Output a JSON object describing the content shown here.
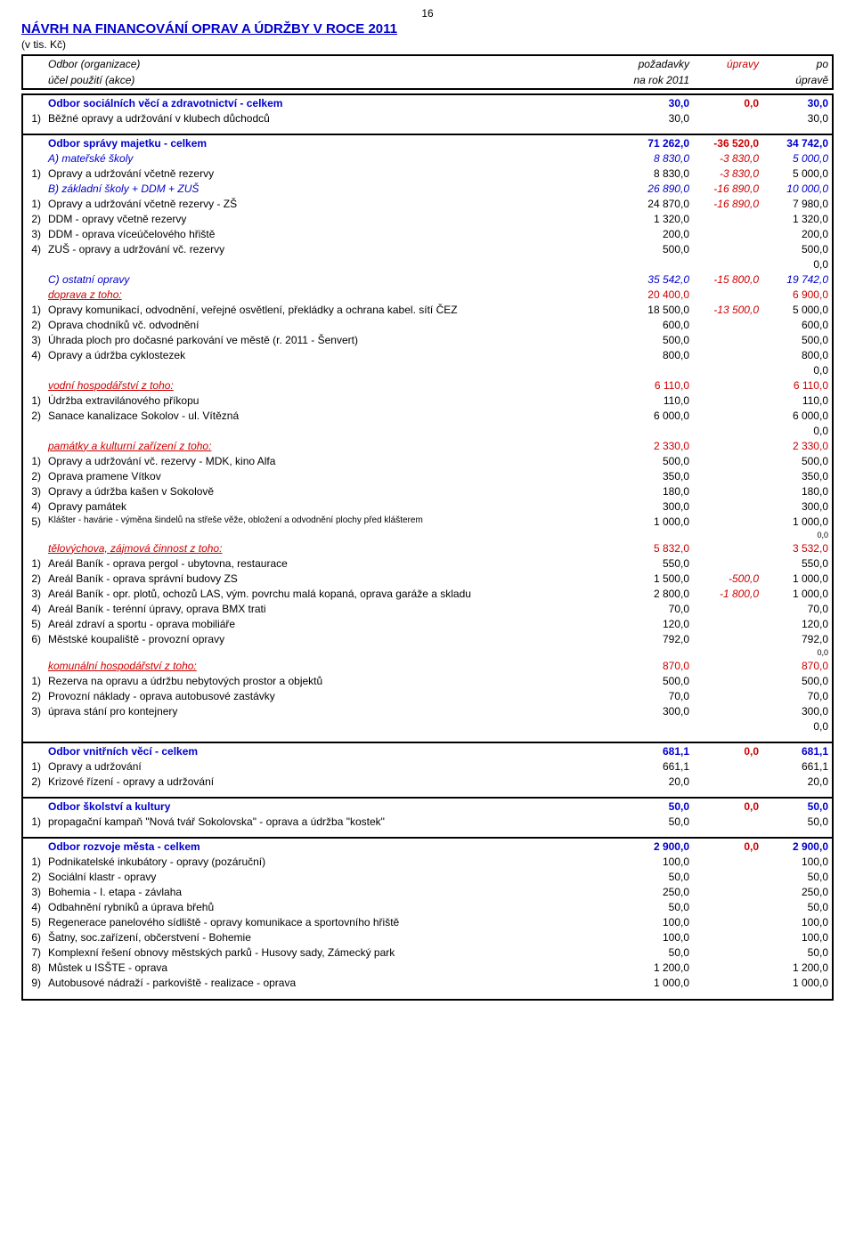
{
  "page_number": "16",
  "title": "NÁVRH NA FINANCOVÁNÍ OPRAV A ÚDRŽBY  V  ROCE  2011",
  "subtitle": "(v tis. Kč)",
  "header": {
    "left1": "Odbor (organizace)",
    "left2": "účel použití (akce)",
    "c1a": "požadavky",
    "c1b": "na rok 2011",
    "c2a": "úpravy",
    "c3a": "po",
    "c3b": "úpravě"
  },
  "sections": [
    {
      "title": "Odbor sociálních věcí a zdravotnictví - celkem",
      "v1": "30,0",
      "v2": "0,0",
      "v3": "30,0",
      "rows": [
        {
          "n": "1)",
          "d": "Běžné opravy a udržování v klubech důchodců",
          "v1": "30,0",
          "v3": "30,0"
        }
      ]
    },
    {
      "title": "Odbor správy majetku - celkem",
      "v1": "71 262,0",
      "v2": "-36 520,0",
      "v3": "34 742,0",
      "groups": [
        {
          "label": "A) mateřské školy",
          "v1": "8 830,0",
          "v2": "-3 830,0",
          "v3": "5 000,0",
          "rows": [
            {
              "n": "1)",
              "d": "Opravy a udržování včetně rezervy",
              "v1": "8 830,0",
              "v2": "-3 830,0",
              "v3": "5 000,0"
            }
          ]
        },
        {
          "label": "B) základní školy + DDM + ZUŠ",
          "v1": "26 890,0",
          "v2": "-16 890,0",
          "v3": "10 000,0",
          "rows": [
            {
              "n": "1)",
              "d": "Opravy a udržování včetně rezervy - ZŠ",
              "v1": "24 870,0",
              "v2": "-16 890,0",
              "v3": "7 980,0"
            },
            {
              "n": "2)",
              "d": "DDM - opravy včetně rezervy",
              "v1": "1 320,0",
              "v3": "1 320,0"
            },
            {
              "n": "3)",
              "d": "DDM - oprava víceúčelového hřiště",
              "v1": "200,0",
              "v3": "200,0"
            },
            {
              "n": "4)",
              "d": "ZUŠ - opravy a udržování vč. rezervy",
              "v1": "500,0",
              "v3": "500,0"
            }
          ],
          "trailing": "0,0"
        },
        {
          "label": "C) ostatní opravy",
          "v1": "35 542,0",
          "v2": "-15 800,0",
          "v3": "19 742,0",
          "subs": [
            {
              "label": "doprava z toho:",
              "v1": "20 400,0",
              "v3": "6 900,0",
              "rows": [
                {
                  "n": "1)",
                  "d": "Opravy komunikací, odvodnění, veřejné osvětlení, překládky a ochrana kabel. sítí ČEZ",
                  "v1": "18 500,0",
                  "v2": "-13 500,0",
                  "v3": "5 000,0"
                },
                {
                  "n": "2)",
                  "d": "Oprava chodníků vč. odvodnění",
                  "v1": "600,0",
                  "v3": "600,0"
                },
                {
                  "n": "3)",
                  "d": "Úhrada ploch pro dočasné parkování ve městě (r. 2011 - Šenvert)",
                  "v1": "500,0",
                  "v3": "500,0"
                },
                {
                  "n": "4)",
                  "d": "Opravy a údržba cyklostezek",
                  "v1": "800,0",
                  "v3": "800,0"
                }
              ],
              "trailing": "0,0"
            },
            {
              "label": "vodní hospodářství z toho:",
              "v1": "6 110,0",
              "v3": "6 110,0",
              "rows": [
                {
                  "n": "1)",
                  "d": "Údržba extravilánového příkopu",
                  "v1": "110,0",
                  "v3": "110,0"
                },
                {
                  "n": "2)",
                  "d": "Sanace kanalizace Sokolov - ul. Vítězná",
                  "v1": "6 000,0",
                  "v3": "6 000,0"
                }
              ],
              "trailing": "0,0"
            },
            {
              "label": "památky a kulturní zařízení z toho:",
              "v1": "2 330,0",
              "v3": "2 330,0",
              "rows": [
                {
                  "n": "1)",
                  "d": "Opravy a udržování vč. rezervy - MDK, kino Alfa",
                  "v1": "500,0",
                  "v3": "500,0"
                },
                {
                  "n": "2)",
                  "d": "Oprava  pramene Vítkov",
                  "v1": "350,0",
                  "v3": "350,0"
                },
                {
                  "n": "3)",
                  "d": "Opravy a údržba  kašen v Sokolově",
                  "v1": "180,0",
                  "v3": "180,0"
                },
                {
                  "n": "4)",
                  "d": "Opravy památek",
                  "v1": "300,0",
                  "v3": "300,0"
                },
                {
                  "n": "5)",
                  "d": "Klášter - havárie - výměna šindelů na střeše věže, obložení a odvodnění plochy před klášterem",
                  "v1": "1 000,0",
                  "v3": "1 000,0",
                  "small": true
                }
              ],
              "trailing": "0,0",
              "trailing_small": true
            },
            {
              "label": "tělovýchova, zájmová činnost z toho:",
              "v1": "5 832,0",
              "v3": "3 532,0",
              "rows": [
                {
                  "n": "1)",
                  "d": "Areál Baník - oprava pergol - ubytovna, restaurace",
                  "v1": "550,0",
                  "v3": "550,0"
                },
                {
                  "n": "2)",
                  "d": "Areál Baník - oprava správní budovy ZS",
                  "v1": "1 500,0",
                  "v2": "-500,0",
                  "v3": "1 000,0"
                },
                {
                  "n": "3)",
                  "d": "Areál Baník - opr. plotů, ochozů LAS, vým. povrchu malá kopaná, oprava garáže a skladu",
                  "v1": "2 800,0",
                  "v2": "-1 800,0",
                  "v3": "1 000,0"
                },
                {
                  "n": "4)",
                  "d": "Areál Baník - terénní úpravy, oprava BMX trati",
                  "v1": "70,0",
                  "v3": "70,0"
                },
                {
                  "n": "5)",
                  "d": "Areál zdraví a sportu - oprava mobiliáře",
                  "v1": "120,0",
                  "v3": "120,0"
                },
                {
                  "n": "6)",
                  "d": "Městské koupaliště - provozní opravy",
                  "v1": "792,0",
                  "v3": "792,0"
                }
              ],
              "trailing": "0,0",
              "trailing_small": true
            },
            {
              "label": "komunální hospodářství z toho:",
              "v1": "870,0",
              "v3": "870,0",
              "rows": [
                {
                  "n": "1)",
                  "d": "Rezerva na opravu a údržbu nebytových prostor a objektů",
                  "v1": "500,0",
                  "v3": "500,0"
                },
                {
                  "n": "2)",
                  "d": "Provozní náklady - oprava autobusové zastávky",
                  "v1": "70,0",
                  "v3": "70,0"
                },
                {
                  "n": "3)",
                  "d": "úprava stání pro kontejnery",
                  "v1": "300,0",
                  "v3": "300,0"
                }
              ],
              "trailing": "0,0"
            }
          ]
        }
      ]
    },
    {
      "title": "Odbor vnitřních věcí - celkem",
      "v1": "681,1",
      "v2": "0,0",
      "v3": "681,1",
      "rows": [
        {
          "n": "1)",
          "d": "Opravy a udržování",
          "v1": "661,1",
          "v3": "661,1"
        },
        {
          "n": "2)",
          "d": "Krizové řízení - opravy a udržování",
          "v1": "20,0",
          "v3": "20,0"
        }
      ]
    },
    {
      "title": "Odbor školství a kultury",
      "v1": "50,0",
      "v2": "0,0",
      "v3": "50,0",
      "rows": [
        {
          "n": "1)",
          "d": "propagační kampaň \"Nová tvář Sokolovska\" - oprava a údržba \"kostek\"",
          "v1": "50,0",
          "v3": "50,0"
        }
      ]
    },
    {
      "title": "Odbor rozvoje města - celkem",
      "v1": "2 900,0",
      "v2": "0,0",
      "v3": "2 900,0",
      "rows": [
        {
          "n": "1)",
          "d": "Podnikatelské inkubátory - opravy (pozáruční)",
          "v1": "100,0",
          "v3": "100,0"
        },
        {
          "n": "2)",
          "d": "Sociální klastr - opravy",
          "v1": "50,0",
          "v3": "50,0"
        },
        {
          "n": "3)",
          "d": "Bohemia - I. etapa - závlaha",
          "v1": "250,0",
          "v3": "250,0"
        },
        {
          "n": "4)",
          "d": "Odbahnění rybníků a úprava břehů",
          "v1": "50,0",
          "v3": "50,0"
        },
        {
          "n": "5)",
          "d": "Regenerace panelového sídliště - opravy komunikace a sportovního hřiště",
          "v1": "100,0",
          "v3": "100,0"
        },
        {
          "n": "6)",
          "d": "Šatny, soc.zařízení, občerstvení - Bohemie",
          "v1": "100,0",
          "v3": "100,0"
        },
        {
          "n": "7)",
          "d": "Komplexní řešení obnovy městských parků - Husovy sady, Zámecký park",
          "v1": "50,0",
          "v3": "50,0"
        },
        {
          "n": "8)",
          "d": "Můstek u ISŠTE - oprava",
          "v1": "1 200,0",
          "v3": "1 200,0"
        },
        {
          "n": "9)",
          "d": "Autobusové nádraží - parkoviště - realizace - oprava",
          "v1": "1 000,0",
          "v3": "1 000,0"
        }
      ]
    }
  ]
}
